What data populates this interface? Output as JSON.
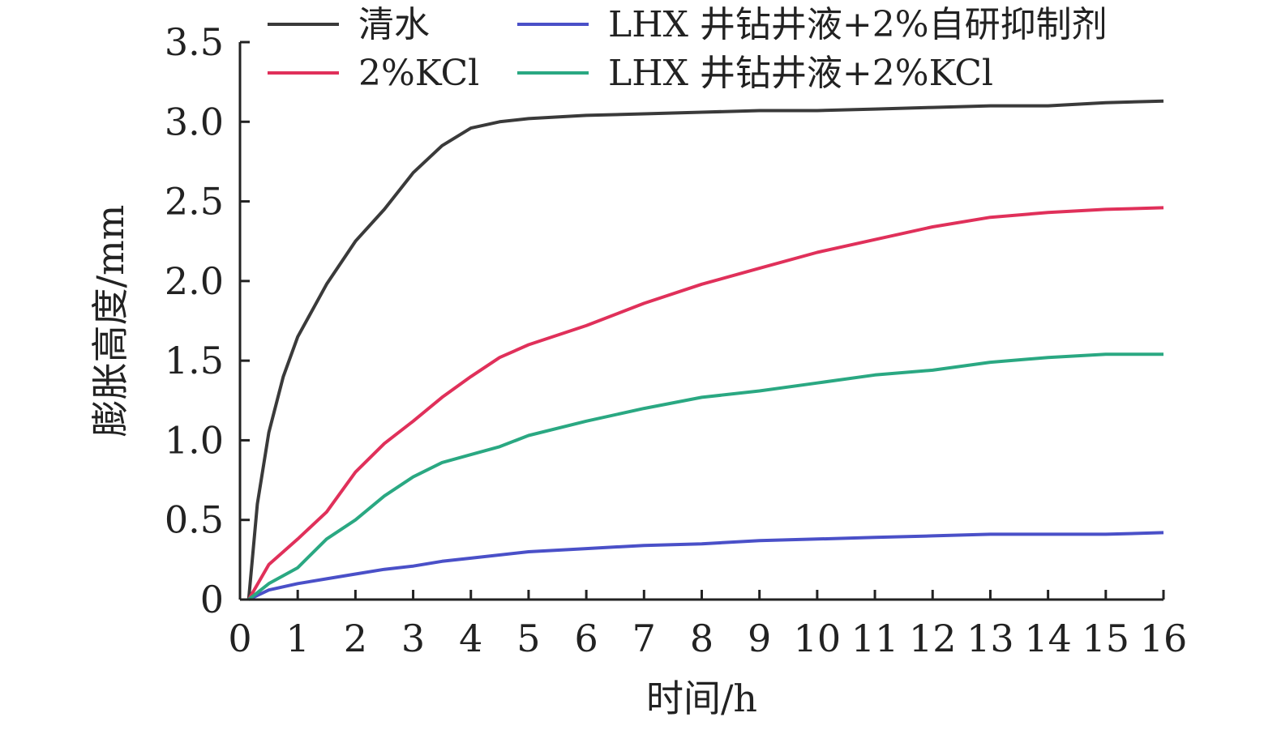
{
  "chart_data": {
    "type": "line",
    "title": "",
    "xlabel": "时间/h",
    "ylabel": "膨胀高度/mm",
    "xlim": [
      0,
      16
    ],
    "ylim": [
      0,
      3.5
    ],
    "x_ticks": [
      0,
      1,
      2,
      3,
      4,
      5,
      6,
      7,
      8,
      9,
      10,
      11,
      12,
      13,
      14,
      15,
      16
    ],
    "x_tick_labels": [
      "0",
      "1",
      "2",
      "3",
      "4",
      "5",
      "6",
      "7",
      "8",
      "9",
      "10",
      "11",
      "12",
      "13",
      "14",
      "15",
      "16"
    ],
    "y_ticks": [
      0,
      0.5,
      1.0,
      1.5,
      2.0,
      2.5,
      3.0,
      3.5
    ],
    "y_tick_labels": [
      "0",
      "0.5",
      "1.0",
      "1.5",
      "2.0",
      "2.5",
      "3.0",
      "3.5"
    ],
    "grid": false,
    "legend_position": "top",
    "series": [
      {
        "name": "清水",
        "color": "#3a3a3a",
        "points": [
          [
            0.15,
            0
          ],
          [
            0.3,
            0.6
          ],
          [
            0.5,
            1.05
          ],
          [
            0.75,
            1.4
          ],
          [
            1,
            1.65
          ],
          [
            1.5,
            1.98
          ],
          [
            2,
            2.25
          ],
          [
            2.5,
            2.45
          ],
          [
            3,
            2.68
          ],
          [
            3.5,
            2.85
          ],
          [
            4,
            2.96
          ],
          [
            4.5,
            3.0
          ],
          [
            5,
            3.02
          ],
          [
            5.5,
            3.03
          ],
          [
            6,
            3.04
          ],
          [
            7,
            3.05
          ],
          [
            8,
            3.06
          ],
          [
            9,
            3.07
          ],
          [
            10,
            3.07
          ],
          [
            11,
            3.08
          ],
          [
            12,
            3.09
          ],
          [
            13,
            3.1
          ],
          [
            14,
            3.1
          ],
          [
            15,
            3.12
          ],
          [
            16,
            3.13
          ]
        ]
      },
      {
        "name": "2%KCl",
        "color": "#e0305a",
        "points": [
          [
            0.15,
            0
          ],
          [
            0.5,
            0.22
          ],
          [
            1,
            0.38
          ],
          [
            1.5,
            0.55
          ],
          [
            2,
            0.8
          ],
          [
            2.5,
            0.98
          ],
          [
            3,
            1.12
          ],
          [
            3.5,
            1.27
          ],
          [
            4,
            1.4
          ],
          [
            4.5,
            1.52
          ],
          [
            5,
            1.6
          ],
          [
            6,
            1.72
          ],
          [
            7,
            1.86
          ],
          [
            8,
            1.98
          ],
          [
            9,
            2.08
          ],
          [
            10,
            2.18
          ],
          [
            11,
            2.26
          ],
          [
            12,
            2.34
          ],
          [
            13,
            2.4
          ],
          [
            14,
            2.43
          ],
          [
            15,
            2.45
          ],
          [
            16,
            2.46
          ]
        ]
      },
      {
        "name": "LHX 井钻井液+2%自研抑制剂",
        "color": "#4a50c8",
        "points": [
          [
            0.15,
            0
          ],
          [
            0.5,
            0.06
          ],
          [
            1,
            0.1
          ],
          [
            1.5,
            0.13
          ],
          [
            2,
            0.16
          ],
          [
            2.5,
            0.19
          ],
          [
            3,
            0.21
          ],
          [
            3.5,
            0.24
          ],
          [
            4,
            0.26
          ],
          [
            5,
            0.3
          ],
          [
            6,
            0.32
          ],
          [
            7,
            0.34
          ],
          [
            8,
            0.35
          ],
          [
            9,
            0.37
          ],
          [
            10,
            0.38
          ],
          [
            11,
            0.39
          ],
          [
            12,
            0.4
          ],
          [
            13,
            0.41
          ],
          [
            14,
            0.41
          ],
          [
            15,
            0.41
          ],
          [
            16,
            0.42
          ]
        ]
      },
      {
        "name": "LHX 井钻井液+2%KCl",
        "color": "#2aa882",
        "points": [
          [
            0.15,
            0
          ],
          [
            0.5,
            0.1
          ],
          [
            1,
            0.2
          ],
          [
            1.5,
            0.38
          ],
          [
            2,
            0.5
          ],
          [
            2.5,
            0.65
          ],
          [
            3,
            0.77
          ],
          [
            3.5,
            0.86
          ],
          [
            4,
            0.91
          ],
          [
            4.5,
            0.96
          ],
          [
            5,
            1.03
          ],
          [
            6,
            1.12
          ],
          [
            7,
            1.2
          ],
          [
            8,
            1.27
          ],
          [
            9,
            1.31
          ],
          [
            10,
            1.36
          ],
          [
            11,
            1.41
          ],
          [
            12,
            1.44
          ],
          [
            13,
            1.49
          ],
          [
            14,
            1.52
          ],
          [
            15,
            1.54
          ],
          [
            16,
            1.54
          ]
        ]
      }
    ]
  }
}
